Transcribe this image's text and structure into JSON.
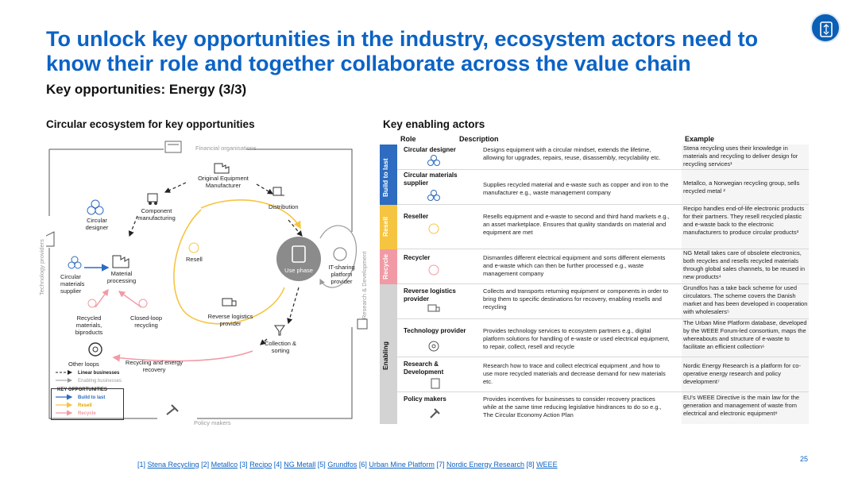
{
  "header": {
    "title": "To unlock key opportunities in the industry, ecosystem actors need to know their role and together collaborate across the value chain",
    "subtitle": "Key opportunities: Energy (3/3)"
  },
  "left_section": {
    "title": "Circular ecosystem for key opportunities",
    "nodes": {
      "financial": "Financial organisations",
      "oem": "Original Equipment Manufacturer",
      "component": "Component manufacturing",
      "distribution": "Distribution",
      "circular_designer": "Circular designer",
      "resell": "Resell",
      "use_phase": "Use phase",
      "it_sharing": "IT-sharing platform provider",
      "circular_supplier": "Circular materials supplier",
      "material_processing": "Material processing",
      "reverse_logistics": "Reverse logistics provider",
      "recycled_biproducts": "Recycled materials, biproducts",
      "closed_loop": "Closed-loop recycling",
      "collection": "Collection & sorting",
      "other_loops": "Other loops",
      "recycling_energy": "Recycling and energy recovery",
      "technology_providers": "Technology providers",
      "research_dev": "Research & Development",
      "policy_makers": "Policy makers"
    },
    "legend": {
      "linear": "Linear businesses",
      "enabling": "Enabling businesses",
      "key_title": "KEY OPPORTUNITIES",
      "build": "Build to last",
      "resell": "Resell",
      "recycle": "Recycle"
    }
  },
  "right_section": {
    "title": "Key enabling actors",
    "headers": {
      "role": "Role",
      "description": "Description",
      "example": "Example"
    },
    "bands": {
      "build": "Build to last",
      "resell": "Resell",
      "recycle": "Recycle",
      "enabling": "Enabling"
    },
    "rows": [
      {
        "role": "Circular designer",
        "description": "Designs equipment with a circular mindset, extends the lifetime, allowing for upgrades, repairs, reuse, disassembly, recyclability etc.",
        "example": "Stena recycling uses their knowledge in materials and recycling to deliver design for recycling services¹"
      },
      {
        "role": "Circular materials supplier",
        "description": "Supplies recycled material and e-waste such as copper and iron to the manufacturer e.g., waste management company",
        "example": "Metallco, a Norwegian recycling group, sells recycled metal ²"
      },
      {
        "role": "Reseller",
        "description": "Resells equipment and e-waste to second and third hand markets e.g., an asset marketplace. Ensures that quality standards on material and equipment are met",
        "example": "Recipo handles end-of-life electronic products for their partners. They resell recycled plastic and e-waste back to the electronic manufacturers to produce circular products³"
      },
      {
        "role": "Recycler",
        "description": "Dismantles different electrical equipment and sorts different elements and e-waste which can then be further processed e.g., waste management company",
        "example": "NG Metall takes care of obsolete electronics, both recycles and resells recycled materials through global sales channels, to be reused in new products⁴"
      },
      {
        "role": "Reverse logistics provider",
        "description": "Collects and transports returning equipment or components in order to bring them to specific destinations for recovery, enabling resells and recycling",
        "example": "Grundfos has a take back scheme for used circulators. The scheme covers the Danish market and has been developed in cooperation with wholesalers⁵"
      },
      {
        "role": "Technology provider",
        "description": "Provides technology services to ecosystem partners e.g., digital platform solutions for handling of e-waste or used electrical equipment, to repair, collect, resell and recycle",
        "example": "The Urban Mine Platform database, developed by the WEEE Forum-led consortium, maps the whereabouts and structure of e-waste to facilitate an efficient collection⁶"
      },
      {
        "role": "Research & Development",
        "description": "Research how to trace and collect electrical equipment ,and how to use more recycled materials and decrease demand for new materials etc.",
        "example": "Nordic Energy Research is a platform for co-operative energy research and policy development⁷"
      },
      {
        "role": "Policy makers",
        "description": "Provides incentives for businesses to consider recovery practices while at the same time reducing legislative hindrances to do so e.g., The Circular Economy Action Plan",
        "example": "EU's WEEE Directive is the main law for the generation and management of waste from electrical and electronic equipment⁸"
      }
    ]
  },
  "footer": {
    "refs": [
      {
        "num": "[1]",
        "label": "Stena Recycling"
      },
      {
        "num": "[2]",
        "label": "Metallco"
      },
      {
        "num": "[3]",
        "label": "Recipo"
      },
      {
        "num": "[4]",
        "label": "NG Metall"
      },
      {
        "num": "[5]",
        "label": "Grundfos"
      },
      {
        "num": "[6]",
        "label": "Urban Mine Platform"
      },
      {
        "num": "[7]",
        "label": "Nordic Energy Research"
      },
      {
        "num": "[8]",
        "label": "WEEE"
      }
    ],
    "page_number": "25"
  },
  "colors": {
    "accent": "#0b63c5",
    "build": "#2d6cc0",
    "resell": "#f5c542",
    "recycle": "#f19aa5",
    "enabling": "#d3d3d3"
  }
}
